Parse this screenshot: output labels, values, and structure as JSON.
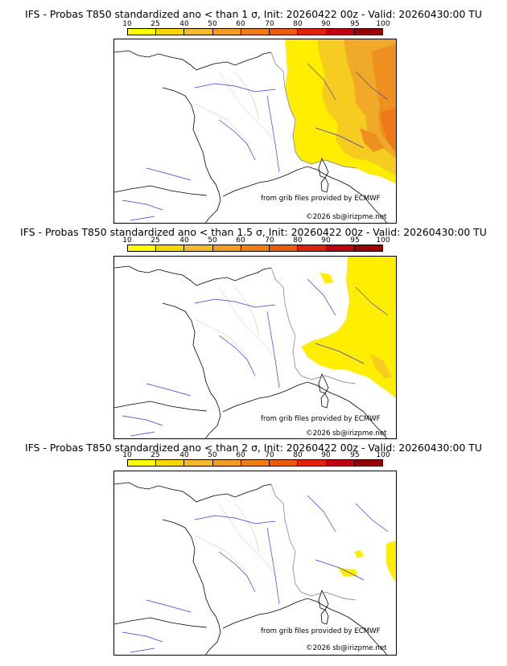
{
  "colors": {
    "scale": [
      "#ffff00",
      "#f5d800",
      "#f2bb2a",
      "#ef9f20",
      "#ef7e18",
      "#f05a10",
      "#e02010",
      "#c00010",
      "#990000",
      "#600000"
    ],
    "coast": "#000000",
    "rivers": "#3a3ad8",
    "borders": "#aaaaaa"
  },
  "scale_labels": [
    "10",
    "25",
    "40",
    "50",
    "60",
    "70",
    "80",
    "90",
    "95",
    "100"
  ],
  "panels": [
    {
      "title": "IFS - Probas T850  standardized ano < than 1 σ, Init: 20260422 00z - Valid: 20260430:00 TU",
      "credit_grib": "from grib files provided by ECMWF",
      "credit_site": "©2026 sb@irizpme.net"
    },
    {
      "title": "IFS - Probas T850  standardized ano < than 1.5 σ, Init: 20260422 00z - Valid: 20260430:00 TU",
      "credit_grib": "from grib files provided by ECMWF",
      "credit_site": "©2026 sb@irizpme.net"
    },
    {
      "title": "IFS - Probas T850  standardized ano < than 2 σ, Init: 20260422 00z - Valid: 20260430:00 TU",
      "credit_grib": "from grib files provided by ECMWF",
      "credit_site": "©2026 sb@irizpme.net"
    }
  ]
}
